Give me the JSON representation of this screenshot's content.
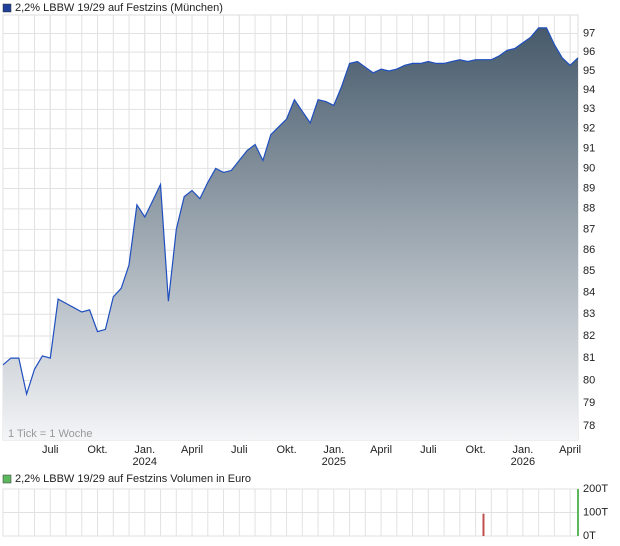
{
  "chart_data": [
    {
      "type": "area",
      "title": "2,2% LBBW 19/29 auf Festzins (München)",
      "annotation": "1 Tick = 1 Woche",
      "legend_color": "#1f3f99",
      "color": "#1f4fbf",
      "fill_top": "#465a6b",
      "fill_bottom": "#f4f5f7",
      "log_scale": true,
      "grid": true,
      "values": [
        80.7,
        81.0,
        81.0,
        79.4,
        80.5,
        81.1,
        81.0,
        83.7,
        83.5,
        83.3,
        83.1,
        83.2,
        82.2,
        82.3,
        83.8,
        84.2,
        85.3,
        88.2,
        87.6,
        88.4,
        89.2,
        83.6,
        87.0,
        88.6,
        88.9,
        88.5,
        89.3,
        90.0,
        89.8,
        89.9,
        90.4,
        90.9,
        91.2,
        90.4,
        91.7,
        92.1,
        92.5,
        93.5,
        92.9,
        92.3,
        93.5,
        93.4,
        93.2,
        94.2,
        95.4,
        95.5,
        95.2,
        94.9,
        95.1,
        95.0,
        95.1,
        95.3,
        95.4,
        95.4,
        95.5,
        95.4,
        95.4,
        95.5,
        95.6,
        95.5,
        95.6,
        95.6,
        95.6,
        95.8,
        96.1,
        96.2,
        96.5,
        96.8,
        97.3,
        97.3,
        96.4,
        95.7,
        95.3,
        95.7
      ],
      "xlim": [
        0,
        73
      ],
      "xticks": [
        {
          "value": 6,
          "label": "Juli"
        },
        {
          "value": 12,
          "label": "Okt."
        },
        {
          "value": 18,
          "label": "Jan."
        },
        {
          "value": 24,
          "label": "April"
        },
        {
          "value": 30,
          "label": "Juli"
        },
        {
          "value": 36,
          "label": "Okt."
        },
        {
          "value": 42,
          "label": "Jan."
        },
        {
          "value": 48,
          "label": "April"
        },
        {
          "value": 54,
          "label": "Juli"
        },
        {
          "value": 60,
          "label": "Okt."
        },
        {
          "value": 66,
          "label": "Jan."
        },
        {
          "value": 72,
          "label": "April"
        }
      ],
      "year_ticks": [
        {
          "value": 18,
          "label": "2024"
        },
        {
          "value": 42,
          "label": "2025"
        },
        {
          "value": 66,
          "label": "2026"
        }
      ],
      "ylim": [
        77.4,
        98
      ],
      "yticks": [
        78,
        79,
        80,
        81,
        82,
        83,
        84,
        85,
        86,
        87,
        88,
        89,
        90,
        91,
        92,
        93,
        94,
        95,
        96,
        97
      ]
    },
    {
      "type": "bar",
      "title": "2,2% LBBW 19/29 auf Festzins Volumen in Euro",
      "legend_color": "#5cb85c",
      "x": [
        61,
        73
      ],
      "values": [
        95000,
        200000
      ],
      "colors": [
        "#c0504d",
        "#5cb85c"
      ],
      "xlim": [
        0,
        73
      ],
      "ylim": [
        0,
        200000
      ],
      "yticks": [
        {
          "value": 0,
          "label": "0T"
        },
        {
          "value": 100000,
          "label": "100T"
        },
        {
          "value": 200000,
          "label": "200T"
        }
      ]
    }
  ]
}
